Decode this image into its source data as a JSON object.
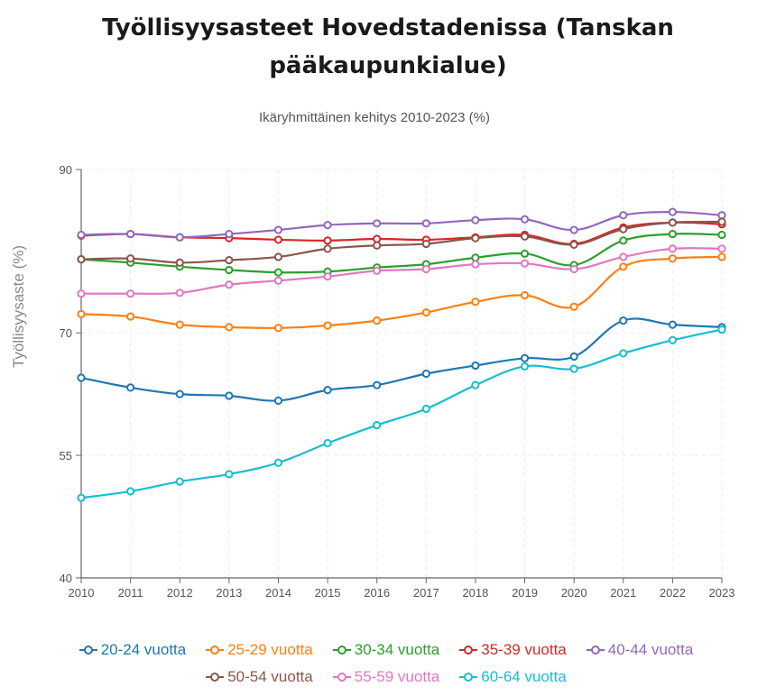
{
  "chart_data": {
    "type": "line",
    "title_line1": "Työllisyysasteet Hovedstadenissa (Tanskan",
    "title_line2": "pääkaupunkialue)",
    "subtitle": "Ikäryhmittäinen kehitys 2010-2023 (%)",
    "xlabel": "",
    "ylabel": "Työllisyysaste (%)",
    "ylim": [
      40,
      90
    ],
    "yticks": [
      40,
      55,
      70,
      90
    ],
    "grid": true,
    "legend_position": "bottom",
    "x": [
      "2010",
      "2011",
      "2012",
      "2013",
      "2014",
      "2015",
      "2016",
      "2017",
      "2018",
      "2019",
      "2020",
      "2021",
      "2022",
      "2023"
    ],
    "series": [
      {
        "name": "20-24 vuotta",
        "color": "#1f77b4",
        "values": [
          64.5,
          63.3,
          62.5,
          62.3,
          61.7,
          63.0,
          63.6,
          65.0,
          66.0,
          66.9,
          67.1,
          71.5,
          71.0,
          70.7
        ]
      },
      {
        "name": "25-29 vuotta",
        "color": "#ff7f0e",
        "values": [
          72.3,
          72.0,
          71.0,
          70.7,
          70.6,
          70.9,
          71.5,
          72.5,
          73.8,
          74.6,
          73.2,
          78.1,
          79.1,
          79.3
        ]
      },
      {
        "name": "30-34 vuotta",
        "color": "#2ca02c",
        "values": [
          79.0,
          78.6,
          78.1,
          77.7,
          77.4,
          77.5,
          78.0,
          78.4,
          79.2,
          79.7,
          78.3,
          81.3,
          82.1,
          82.0
        ]
      },
      {
        "name": "35-39 vuotta",
        "color": "#d62728",
        "values": [
          81.9,
          82.1,
          81.7,
          81.6,
          81.4,
          81.3,
          81.5,
          81.4,
          81.7,
          82.0,
          80.9,
          82.9,
          83.5,
          83.3
        ]
      },
      {
        "name": "40-44 vuotta",
        "color": "#9467bd",
        "values": [
          82.0,
          82.1,
          81.7,
          82.1,
          82.6,
          83.2,
          83.4,
          83.4,
          83.8,
          83.9,
          82.6,
          84.4,
          84.8,
          84.4
        ]
      },
      {
        "name": "50-54 vuotta",
        "color": "#8c564b",
        "values": [
          79.0,
          79.1,
          78.6,
          78.9,
          79.3,
          80.3,
          80.7,
          80.9,
          81.6,
          81.8,
          80.8,
          82.7,
          83.5,
          83.6
        ]
      },
      {
        "name": "55-59 vuotta",
        "color": "#e377c2",
        "values": [
          74.8,
          74.8,
          74.9,
          75.9,
          76.4,
          76.9,
          77.6,
          77.8,
          78.4,
          78.5,
          77.8,
          79.3,
          80.3,
          80.3
        ]
      },
      {
        "name": "60-64 vuotta",
        "color": "#17becf",
        "values": [
          49.8,
          50.6,
          51.8,
          52.7,
          54.1,
          56.5,
          58.7,
          60.7,
          63.6,
          65.9,
          65.6,
          67.5,
          69.1,
          70.4
        ]
      }
    ]
  }
}
